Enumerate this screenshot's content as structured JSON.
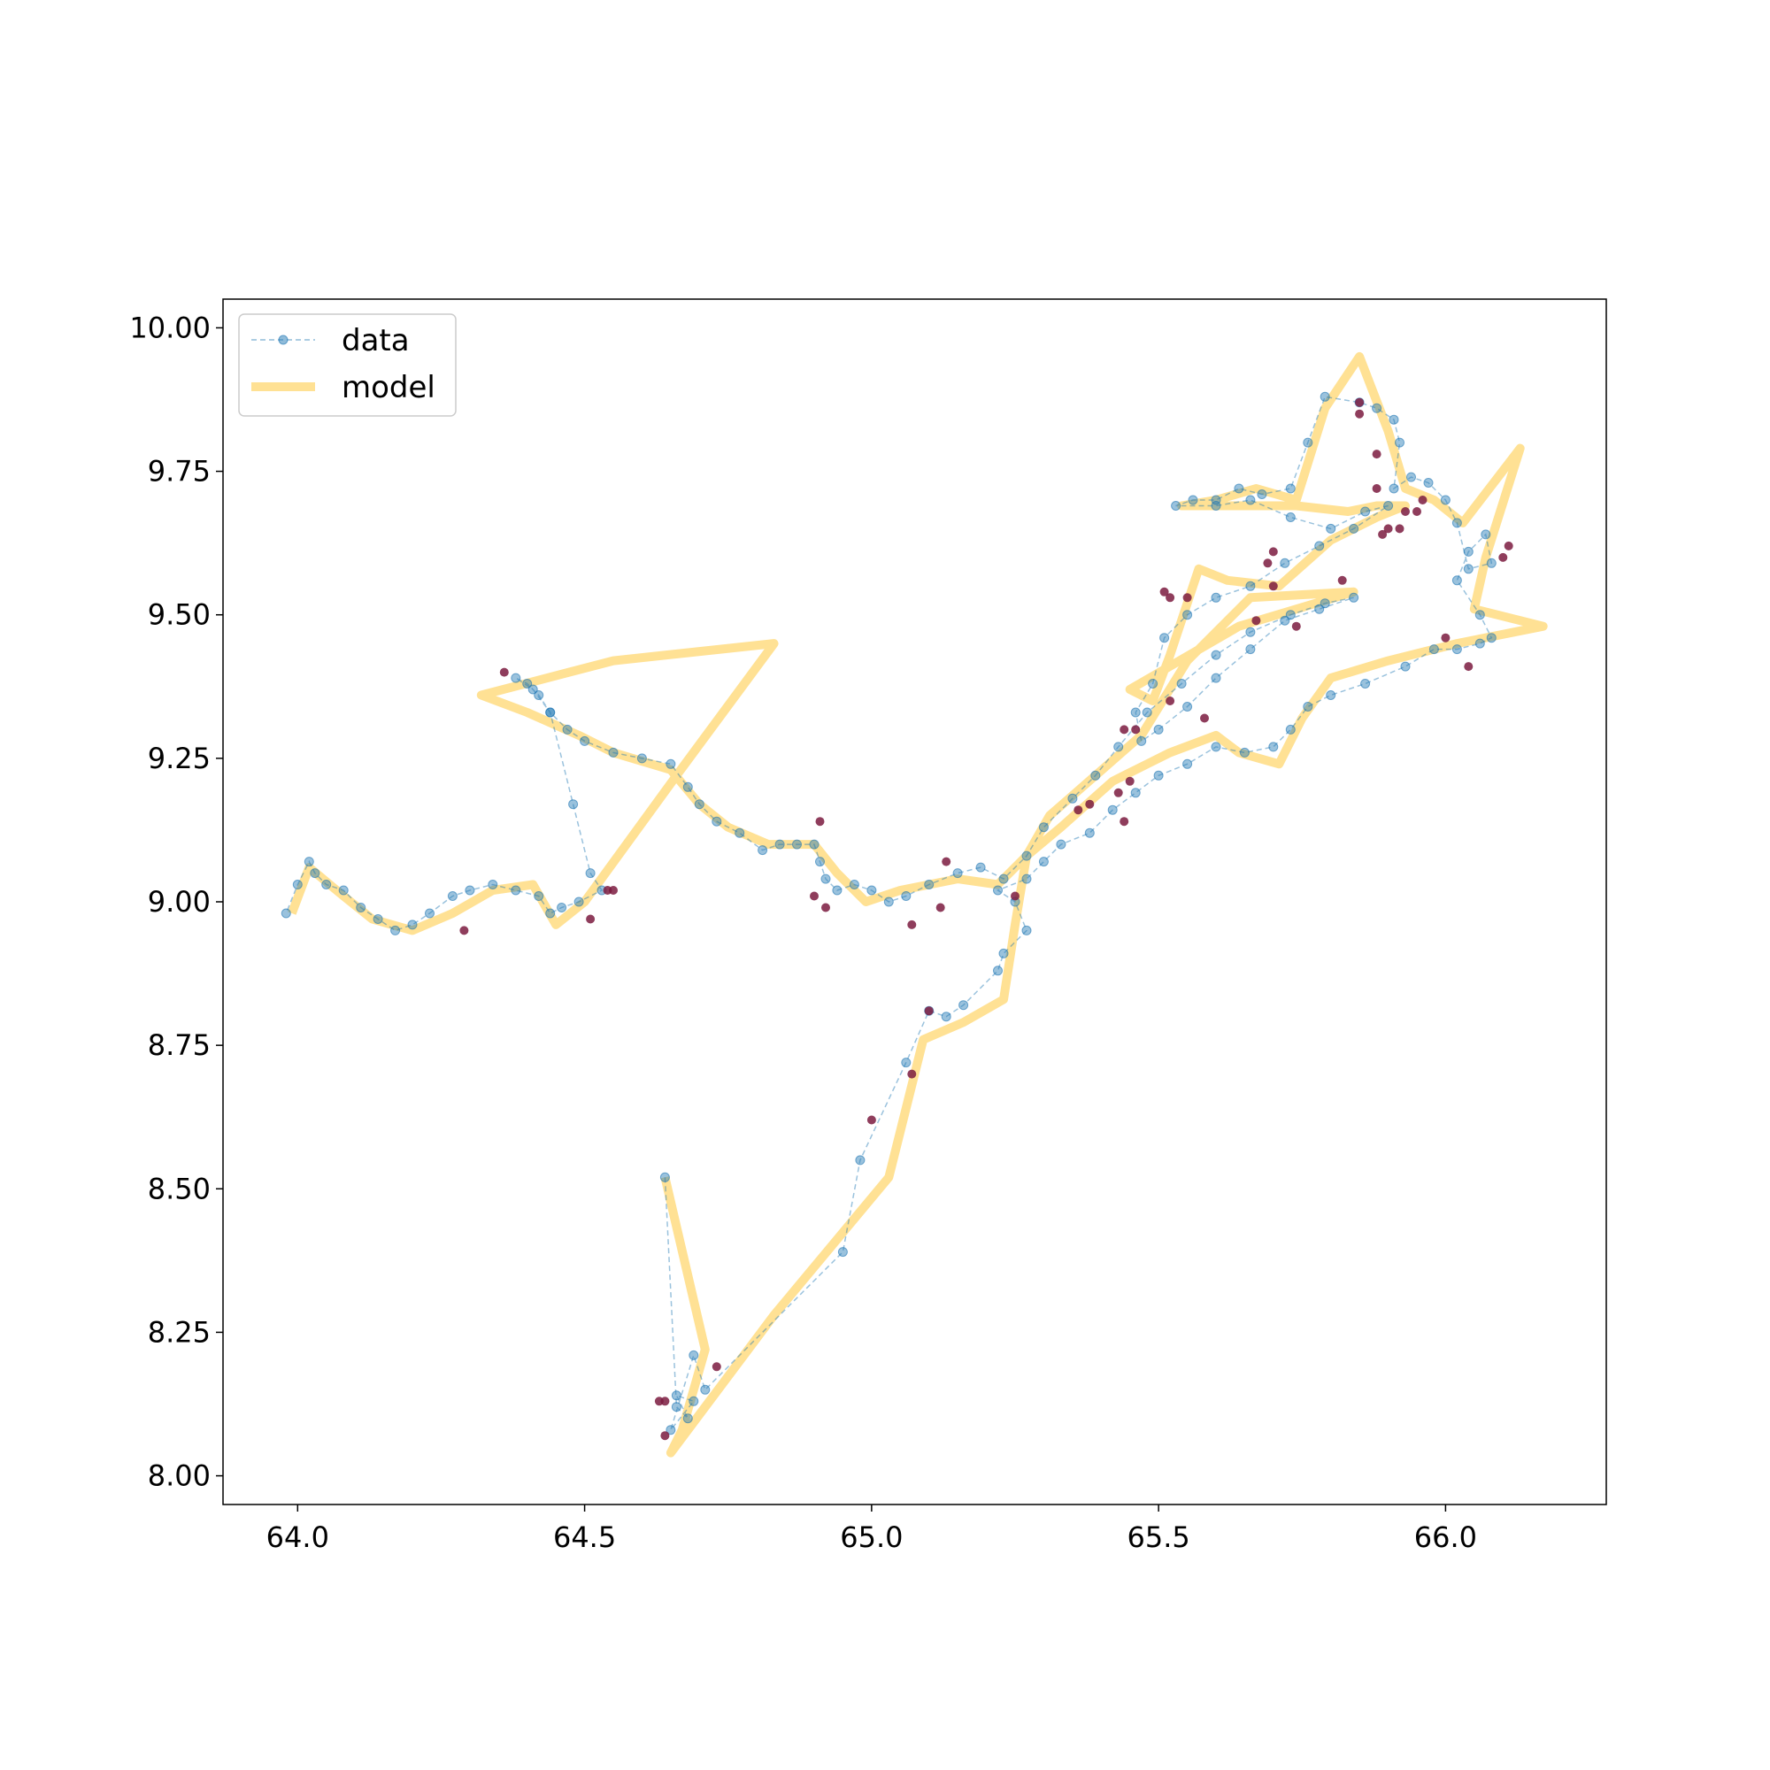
{
  "chart_data": {
    "type": "line",
    "title": "",
    "xlabel": "",
    "ylabel": "",
    "xlim": [
      63.87,
      66.28
    ],
    "ylim": [
      7.95,
      10.05
    ],
    "xticks": [
      64.0,
      64.5,
      65.0,
      65.5,
      66.0
    ],
    "xtick_labels": [
      "64.0",
      "64.5",
      "65.0",
      "65.5",
      "66.0"
    ],
    "yticks": [
      8.0,
      8.25,
      8.5,
      8.75,
      9.0,
      9.25,
      9.5,
      9.75,
      10.0
    ],
    "ytick_labels": [
      "8.00",
      "8.25",
      "8.50",
      "8.75",
      "9.00",
      "9.25",
      "9.50",
      "9.75",
      "10.00"
    ],
    "grid": false,
    "legend_position": "top-left",
    "colors": {
      "data": "#1f77b4",
      "model": "#ffd466",
      "outlier": "#7b1b3f"
    },
    "series": [
      {
        "name": "data",
        "style": "dashed line with circle markers",
        "points": [
          [
            64.64,
            8.52
          ],
          [
            64.66,
            8.12
          ],
          [
            64.68,
            8.1
          ],
          [
            64.66,
            8.14
          ],
          [
            64.69,
            8.13
          ],
          [
            64.65,
            8.08
          ],
          [
            64.69,
            8.21
          ],
          [
            64.71,
            8.15
          ],
          [
            64.95,
            8.39
          ],
          [
            64.98,
            8.55
          ],
          [
            65.06,
            8.72
          ],
          [
            65.1,
            8.81
          ],
          [
            65.13,
            8.8
          ],
          [
            65.16,
            8.82
          ],
          [
            65.22,
            8.88
          ],
          [
            65.23,
            8.91
          ],
          [
            65.27,
            8.95
          ],
          [
            65.25,
            9.0
          ],
          [
            65.22,
            9.02
          ],
          [
            65.27,
            9.04
          ],
          [
            65.3,
            9.07
          ],
          [
            65.33,
            9.1
          ],
          [
            65.38,
            9.12
          ],
          [
            65.42,
            9.16
          ],
          [
            65.46,
            9.19
          ],
          [
            65.5,
            9.22
          ],
          [
            65.55,
            9.24
          ],
          [
            65.6,
            9.27
          ],
          [
            65.65,
            9.26
          ],
          [
            65.7,
            9.27
          ],
          [
            65.73,
            9.3
          ],
          [
            65.76,
            9.34
          ],
          [
            65.8,
            9.36
          ],
          [
            65.86,
            9.38
          ],
          [
            65.93,
            9.41
          ],
          [
            65.98,
            9.44
          ],
          [
            66.02,
            9.44
          ],
          [
            66.06,
            9.45
          ],
          [
            66.08,
            9.46
          ],
          [
            66.06,
            9.5
          ],
          [
            66.02,
            9.56
          ],
          [
            66.04,
            9.61
          ],
          [
            66.07,
            9.64
          ],
          [
            66.08,
            9.59
          ],
          [
            66.04,
            9.58
          ],
          [
            66.02,
            9.66
          ],
          [
            66.0,
            9.7
          ],
          [
            65.97,
            9.73
          ],
          [
            65.94,
            9.74
          ],
          [
            65.91,
            9.72
          ],
          [
            65.92,
            9.8
          ],
          [
            65.91,
            9.84
          ],
          [
            65.88,
            9.86
          ],
          [
            65.85,
            9.87
          ],
          [
            65.79,
            9.88
          ],
          [
            65.76,
            9.8
          ],
          [
            65.73,
            9.72
          ],
          [
            65.68,
            9.71
          ],
          [
            65.64,
            9.72
          ],
          [
            65.6,
            9.7
          ],
          [
            65.56,
            9.7
          ],
          [
            65.53,
            9.69
          ],
          [
            65.6,
            9.69
          ],
          [
            65.66,
            9.7
          ],
          [
            65.73,
            9.67
          ],
          [
            65.8,
            9.65
          ],
          [
            65.86,
            9.68
          ],
          [
            65.9,
            9.69
          ],
          [
            65.84,
            9.65
          ],
          [
            65.78,
            9.62
          ],
          [
            65.72,
            9.59
          ],
          [
            65.66,
            9.55
          ],
          [
            65.6,
            9.53
          ],
          [
            65.55,
            9.5
          ],
          [
            65.51,
            9.46
          ],
          [
            65.49,
            9.38
          ],
          [
            65.46,
            9.33
          ],
          [
            65.47,
            9.28
          ],
          [
            65.5,
            9.3
          ],
          [
            65.55,
            9.34
          ],
          [
            65.6,
            9.39
          ],
          [
            65.66,
            9.44
          ],
          [
            65.72,
            9.49
          ],
          [
            65.78,
            9.51
          ],
          [
            65.84,
            9.53
          ],
          [
            65.79,
            9.52
          ],
          [
            65.73,
            9.5
          ],
          [
            65.66,
            9.47
          ],
          [
            65.6,
            9.43
          ],
          [
            65.54,
            9.38
          ],
          [
            65.48,
            9.33
          ],
          [
            65.43,
            9.27
          ],
          [
            65.39,
            9.22
          ],
          [
            65.35,
            9.18
          ],
          [
            65.3,
            9.13
          ],
          [
            65.27,
            9.08
          ],
          [
            65.23,
            9.04
          ],
          [
            65.19,
            9.06
          ],
          [
            65.15,
            9.05
          ],
          [
            65.1,
            9.03
          ],
          [
            65.06,
            9.01
          ],
          [
            65.03,
            9.0
          ],
          [
            65.0,
            9.02
          ],
          [
            64.97,
            9.03
          ],
          [
            64.94,
            9.02
          ],
          [
            64.92,
            9.04
          ],
          [
            64.91,
            9.07
          ],
          [
            64.9,
            9.1
          ],
          [
            64.87,
            9.1
          ],
          [
            64.84,
            9.1
          ],
          [
            64.81,
            9.09
          ],
          [
            64.77,
            9.12
          ],
          [
            64.73,
            9.14
          ],
          [
            64.7,
            9.17
          ],
          [
            64.68,
            9.2
          ],
          [
            64.65,
            9.24
          ],
          [
            64.6,
            9.25
          ],
          [
            64.55,
            9.26
          ],
          [
            64.5,
            9.28
          ],
          [
            64.47,
            9.3
          ],
          [
            64.44,
            9.33
          ],
          [
            64.42,
            9.36
          ],
          [
            64.4,
            9.38
          ],
          [
            64.38,
            9.39
          ],
          [
            64.41,
            9.37
          ],
          [
            64.44,
            9.33
          ],
          [
            64.48,
            9.17
          ],
          [
            64.51,
            9.05
          ],
          [
            64.53,
            9.02
          ],
          [
            64.49,
            9.0
          ],
          [
            64.46,
            8.99
          ],
          [
            64.44,
            8.98
          ],
          [
            64.42,
            9.01
          ],
          [
            64.38,
            9.02
          ],
          [
            64.34,
            9.03
          ],
          [
            64.3,
            9.02
          ],
          [
            64.27,
            9.01
          ],
          [
            64.23,
            8.98
          ],
          [
            64.2,
            8.96
          ],
          [
            64.17,
            8.95
          ],
          [
            64.14,
            8.97
          ],
          [
            64.11,
            8.99
          ],
          [
            64.08,
            9.02
          ],
          [
            64.05,
            9.03
          ],
          [
            64.03,
            9.05
          ],
          [
            64.02,
            9.07
          ],
          [
            64.0,
            9.03
          ],
          [
            63.98,
            8.98
          ]
        ]
      },
      {
        "name": "model",
        "style": "thick semi-transparent line",
        "points": [
          [
            64.64,
            8.52
          ],
          [
            64.71,
            8.22
          ],
          [
            64.67,
            8.08
          ],
          [
            64.65,
            8.04
          ],
          [
            64.83,
            8.28
          ],
          [
            65.03,
            8.52
          ],
          [
            65.09,
            8.76
          ],
          [
            65.16,
            8.79
          ],
          [
            65.23,
            8.83
          ],
          [
            65.25,
            8.96
          ],
          [
            65.27,
            9.08
          ],
          [
            65.33,
            9.13
          ],
          [
            65.42,
            9.21
          ],
          [
            65.48,
            9.24
          ],
          [
            65.52,
            9.26
          ],
          [
            65.6,
            9.29
          ],
          [
            65.64,
            9.26
          ],
          [
            65.71,
            9.24
          ],
          [
            65.75,
            9.32
          ],
          [
            65.8,
            9.39
          ],
          [
            65.9,
            9.42
          ],
          [
            66.02,
            9.45
          ],
          [
            66.17,
            9.48
          ],
          [
            66.05,
            9.51
          ],
          [
            66.07,
            9.6
          ],
          [
            66.13,
            9.79
          ],
          [
            66.03,
            9.66
          ],
          [
            65.98,
            9.7
          ],
          [
            65.93,
            9.72
          ],
          [
            65.9,
            9.82
          ],
          [
            65.85,
            9.95
          ],
          [
            65.79,
            9.86
          ],
          [
            65.74,
            9.7
          ],
          [
            65.67,
            9.72
          ],
          [
            65.6,
            9.7
          ],
          [
            65.54,
            9.69
          ],
          [
            65.64,
            9.69
          ],
          [
            65.74,
            9.69
          ],
          [
            65.83,
            9.68
          ],
          [
            65.88,
            9.69
          ],
          [
            65.93,
            9.69
          ],
          [
            65.88,
            9.67
          ],
          [
            65.8,
            9.63
          ],
          [
            65.71,
            9.55
          ],
          [
            65.62,
            9.56
          ],
          [
            65.57,
            9.58
          ],
          [
            65.52,
            9.43
          ],
          [
            65.49,
            9.35
          ],
          [
            65.45,
            9.37
          ],
          [
            65.64,
            9.48
          ],
          [
            65.84,
            9.54
          ],
          [
            65.66,
            9.53
          ],
          [
            65.55,
            9.42
          ],
          [
            65.47,
            9.29
          ],
          [
            65.39,
            9.22
          ],
          [
            65.31,
            9.15
          ],
          [
            65.27,
            9.08
          ],
          [
            65.22,
            9.03
          ],
          [
            65.15,
            9.04
          ],
          [
            65.05,
            9.02
          ],
          [
            64.99,
            9.0
          ],
          [
            64.94,
            9.05
          ],
          [
            64.9,
            9.1
          ],
          [
            64.82,
            9.1
          ],
          [
            64.75,
            9.13
          ],
          [
            64.7,
            9.17
          ],
          [
            64.65,
            9.23
          ],
          [
            64.55,
            9.26
          ],
          [
            64.49,
            9.29
          ],
          [
            64.4,
            9.33
          ],
          [
            64.32,
            9.36
          ],
          [
            64.55,
            9.42
          ],
          [
            64.83,
            9.45
          ],
          [
            64.66,
            9.22
          ],
          [
            64.5,
            9.0
          ],
          [
            64.45,
            8.96
          ],
          [
            64.41,
            9.03
          ],
          [
            64.34,
            9.02
          ],
          [
            64.27,
            8.98
          ],
          [
            64.2,
            8.95
          ],
          [
            64.13,
            8.97
          ],
          [
            64.08,
            9.01
          ],
          [
            64.02,
            9.06
          ],
          [
            63.99,
            8.98
          ]
        ]
      },
      {
        "name": "",
        "style": "dark red outlier markers",
        "points": [
          [
            64.64,
            8.07
          ],
          [
            64.63,
            8.13
          ],
          [
            64.64,
            8.13
          ],
          [
            64.73,
            8.19
          ],
          [
            65.0,
            8.62
          ],
          [
            65.07,
            8.7
          ],
          [
            65.1,
            8.81
          ],
          [
            65.25,
            9.01
          ],
          [
            65.38,
            9.17
          ],
          [
            65.36,
            9.16
          ],
          [
            65.45,
            9.21
          ],
          [
            65.43,
            9.19
          ],
          [
            65.44,
            9.14
          ],
          [
            65.46,
            9.3
          ],
          [
            65.44,
            9.3
          ],
          [
            65.58,
            9.32
          ],
          [
            65.52,
            9.35
          ],
          [
            65.52,
            9.53
          ],
          [
            65.55,
            9.53
          ],
          [
            65.51,
            9.54
          ],
          [
            65.67,
            9.49
          ],
          [
            65.69,
            9.59
          ],
          [
            65.7,
            9.61
          ],
          [
            65.7,
            9.55
          ],
          [
            65.74,
            9.48
          ],
          [
            65.82,
            9.56
          ],
          [
            65.85,
            9.87
          ],
          [
            65.85,
            9.85
          ],
          [
            65.88,
            9.78
          ],
          [
            65.88,
            9.72
          ],
          [
            65.9,
            9.65
          ],
          [
            65.92,
            9.65
          ],
          [
            65.89,
            9.64
          ],
          [
            65.93,
            9.68
          ],
          [
            65.95,
            9.68
          ],
          [
            65.96,
            9.7
          ],
          [
            66.0,
            9.46
          ],
          [
            66.04,
            9.41
          ],
          [
            66.1,
            9.6
          ],
          [
            66.11,
            9.62
          ],
          [
            65.07,
            8.96
          ],
          [
            65.12,
            8.99
          ],
          [
            65.13,
            9.07
          ],
          [
            64.9,
            9.01
          ],
          [
            64.92,
            8.99
          ],
          [
            64.91,
            9.14
          ],
          [
            64.54,
            9.02
          ],
          [
            64.55,
            9.02
          ],
          [
            64.51,
            8.97
          ],
          [
            64.29,
            8.95
          ],
          [
            64.36,
            9.4
          ]
        ]
      }
    ]
  }
}
